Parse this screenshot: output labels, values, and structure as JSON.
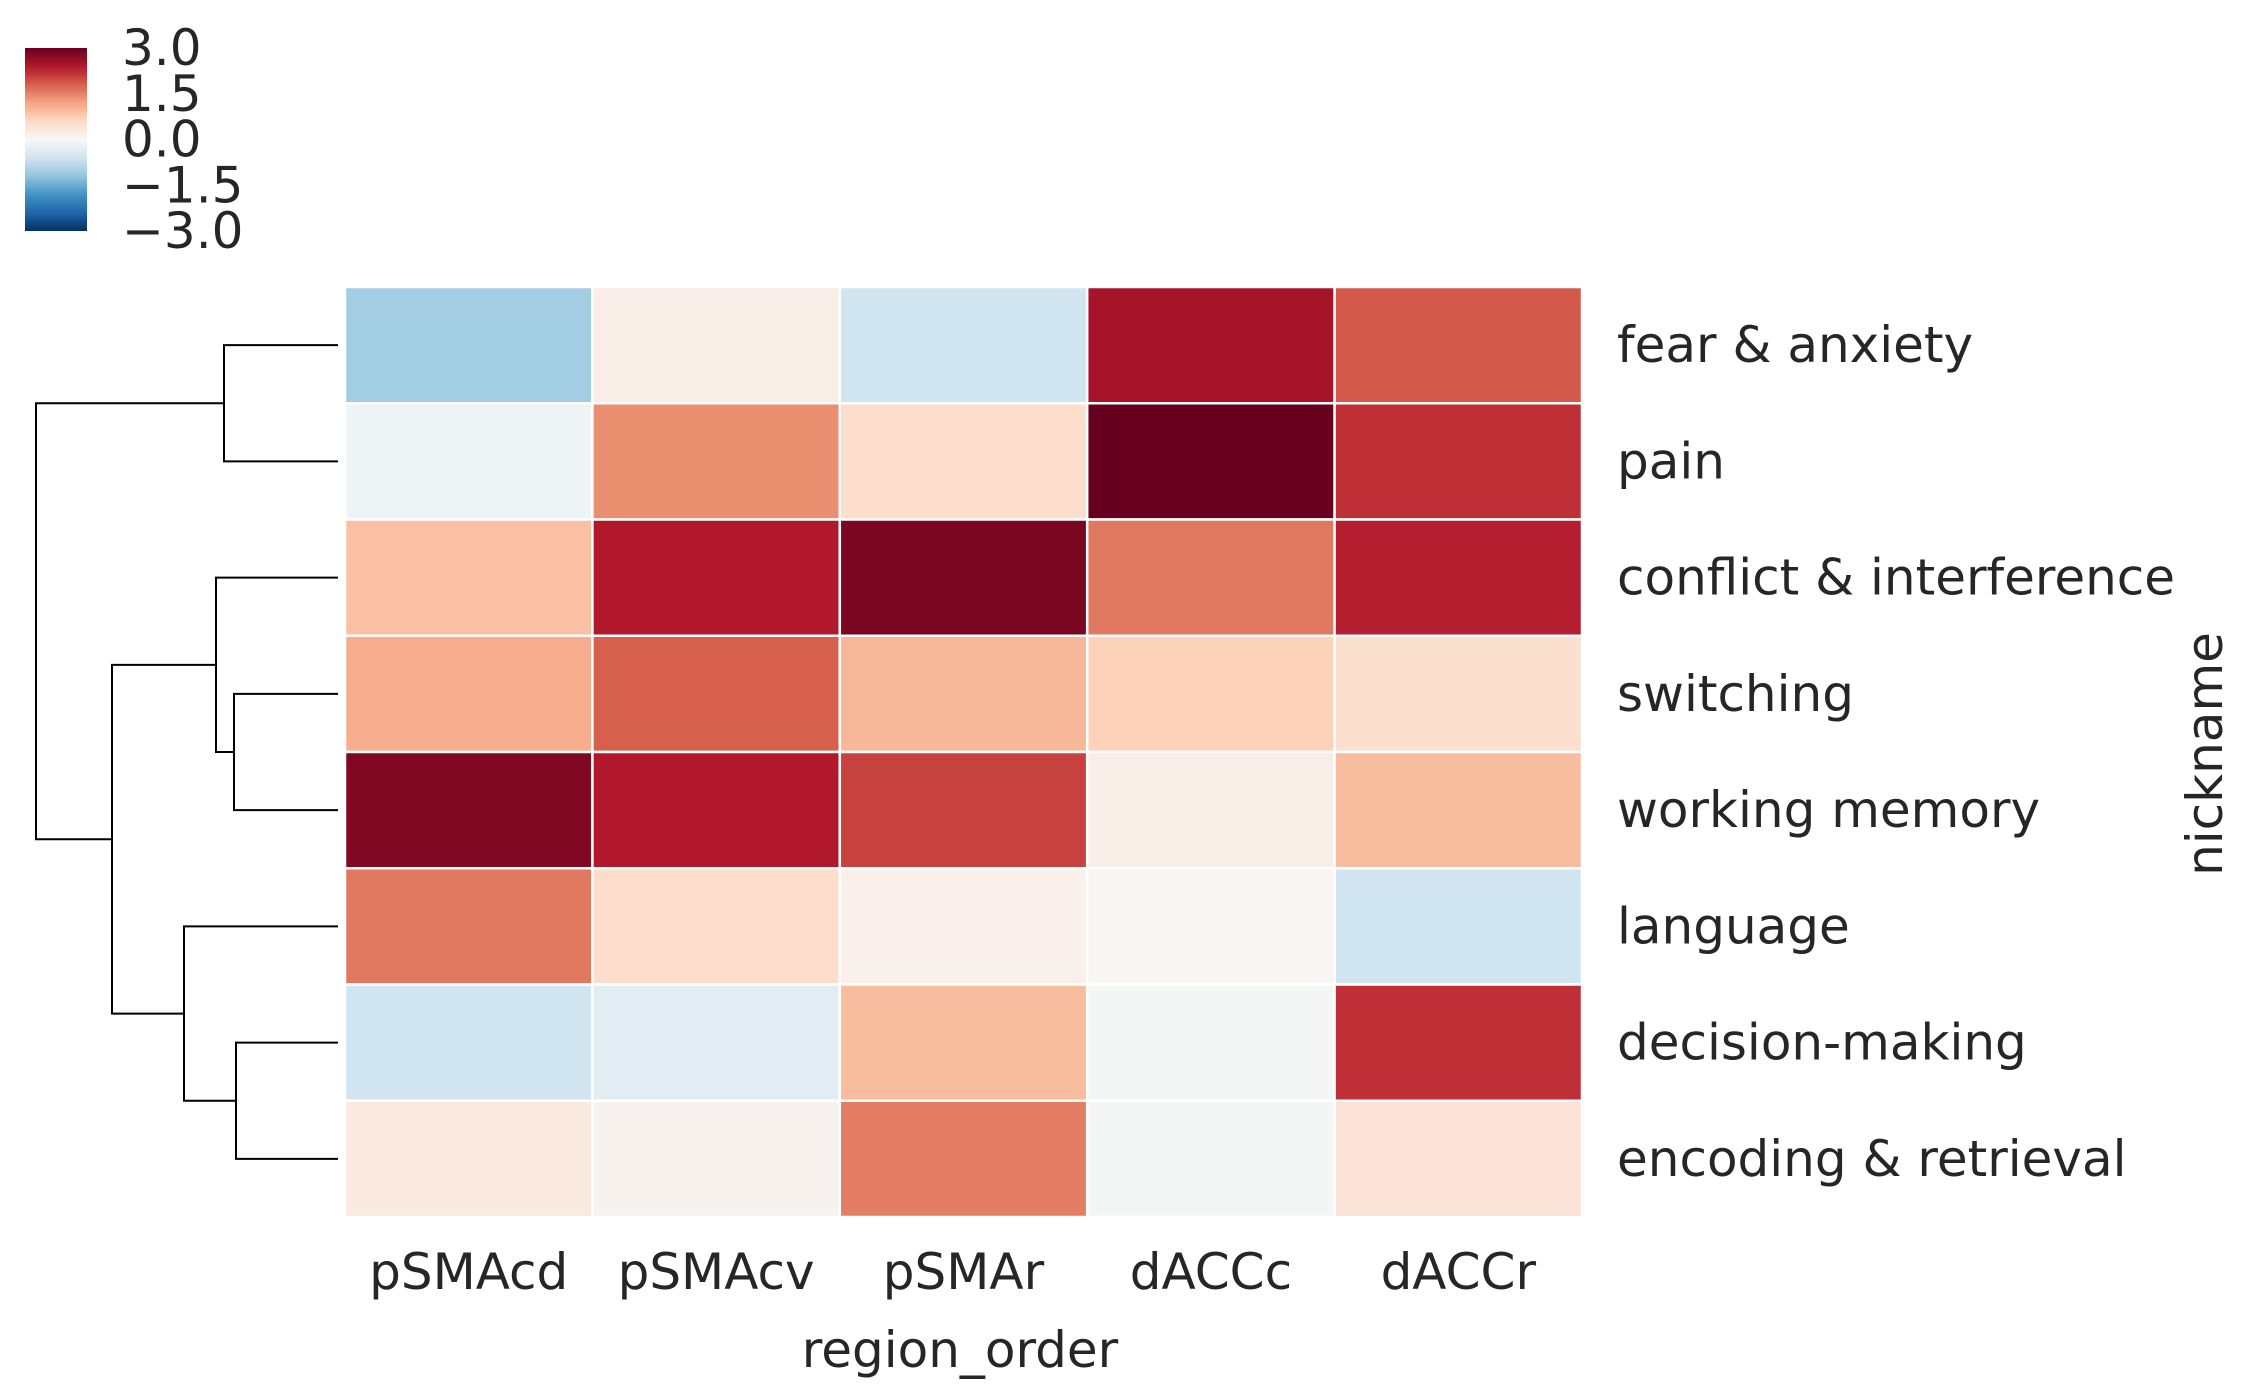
{
  "chart_data": {
    "type": "heatmap",
    "title": "",
    "xlabel": "region_order",
    "ylabel": "nickname",
    "columns": [
      "pSMAcd",
      "pSMAcv",
      "pSMAr",
      "dACCc",
      "dACCr"
    ],
    "rows": [
      "fear & anxiety",
      "pain",
      "conflict & interference",
      "switching",
      "working memory",
      "language",
      "decision-making",
      "encoding & retrieval"
    ],
    "values": [
      [
        -1.05,
        0.2,
        -0.6,
        2.5,
        1.85
      ],
      [
        -0.15,
        1.4,
        0.55,
        3.6,
        2.2
      ],
      [
        0.9,
        2.4,
        2.85,
        1.6,
        2.35
      ],
      [
        1.1,
        1.8,
        1.0,
        0.7,
        0.5
      ],
      [
        2.8,
        2.4,
        2.05,
        0.2,
        0.95
      ],
      [
        1.6,
        0.55,
        0.15,
        0.05,
        -0.6
      ],
      [
        -0.6,
        -0.35,
        0.95,
        -0.05,
        2.2
      ],
      [
        0.3,
        0.1,
        1.55,
        -0.05,
        0.4
      ]
    ],
    "colorbar": {
      "ticks": [
        "3.0",
        "1.5",
        "0.0",
        "−1.5",
        "−3.0"
      ],
      "vmin": -3.0,
      "vmax": 3.0,
      "cmap": "RdBu_r",
      "position": "top-left"
    },
    "dendrogram": "rows-left",
    "grid": false,
    "legend": "colorbar top-left"
  }
}
